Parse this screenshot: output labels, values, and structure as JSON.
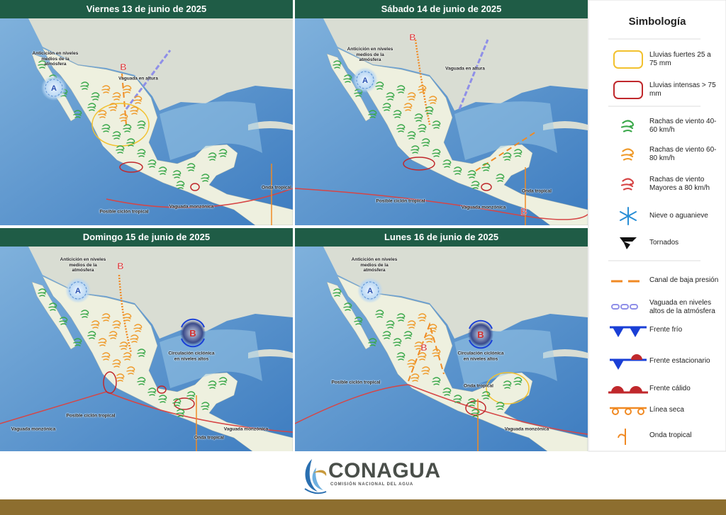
{
  "panels": [
    {
      "title": "Viernes 13 de junio de 2025",
      "labels": [
        "Anticición en niveles medios de la atmósfera",
        "A",
        "B",
        "Vaguada en altura",
        "Posible ciclón tropical",
        "Vaguada monzónica",
        "Onda tropical"
      ]
    },
    {
      "title": "Sábado 14 de junio de 2025",
      "labels": [
        "Anticición en niveles medios de la atmósfera",
        "A",
        "B",
        "Vaguada en altura",
        "Posible ciclón tropical",
        "Vaguada monzónica",
        "Onda tropical",
        "B"
      ]
    },
    {
      "title": "Domingo 15 de junio de 2025",
      "labels": [
        "Anticición en niveles medios de la atmósfera",
        "A",
        "B",
        "B",
        "Circulación ciclónica en niveles altos",
        "Posible ciclón tropical",
        "Vaguada monzónica",
        "Onda tropical",
        "Vaguada monzónica"
      ]
    },
    {
      "title": "Lunes 16 de junio de 2025",
      "labels": [
        "Anticición en niveles medios de la atmósfera",
        "A",
        "Circulación ciclónica en niveles altos",
        "B",
        "Posible ciclón tropical",
        "Onda tropical",
        "Vaguada monzónica",
        "B"
      ]
    }
  ],
  "legend": {
    "title": "Simbología",
    "items": [
      "Lluvias fuertes 25 a 75 mm",
      "Lluvias intensas > 75 mm",
      "Rachas de viento 40-60 km/h",
      "Rachas de viento 60-80 km/h",
      "Rachas de viento Mayores a 80 km/h",
      "Nieve o aguanieve",
      "Tornados",
      "Canal de baja presión",
      "Vaguada en niveles altos de la atmósfera",
      "Frente frío",
      "Frente estacionario",
      "Frente cálido",
      "Línea seca",
      "Onda tropical"
    ]
  },
  "footer": {
    "brand": "CONAGUA",
    "subtitle": "COMISIÓN NACIONAL DEL AGUA"
  }
}
